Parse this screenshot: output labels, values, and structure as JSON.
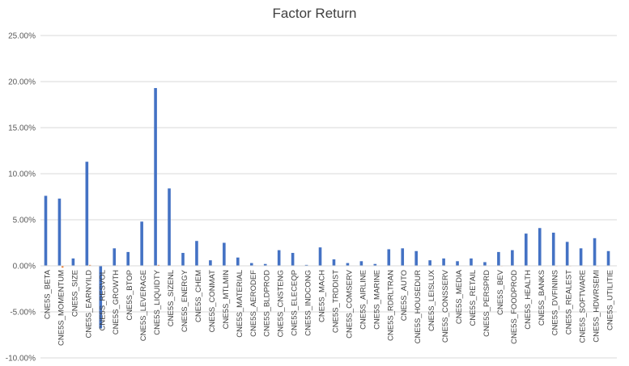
{
  "chart_data": {
    "type": "bar",
    "title": "Factor Return",
    "xlabel": "",
    "ylabel": "",
    "ylim": [
      -0.1,
      0.25
    ],
    "yticks": [
      -0.1,
      -0.05,
      0.0,
      0.05,
      0.1,
      0.15,
      0.2,
      0.25
    ],
    "ytick_labels": [
      "-10.00%",
      "-5.00%",
      "0.00%",
      "5.00%",
      "10.00%",
      "15.00%",
      "20.00%",
      "25.00%"
    ],
    "grid": true,
    "legend": "none",
    "categories": [
      "CNE5S_BETA",
      "CNE5S_MOMENTUM",
      "CNE5S_SIZE",
      "CNE5S_EARNYILD",
      "CNE5S_RESVOL",
      "CNE5S_GROWTH",
      "CNE5S_BTOP",
      "CNE5S_LEVERAGE",
      "CNE5S_LIQUIDTY",
      "CNE5S_SIZENL",
      "CNE5S_ENERGY",
      "CNE5S_CHEM",
      "CNE5S_CONMAT",
      "CNE5S_MTLMIN",
      "CNE5S_MATERIAL",
      "CNE5S_AERODEF",
      "CNE5S_BLDPROD",
      "CNE5S_CNSTENG",
      "CNE5S_ELECEQP",
      "CNE5S_INDCONG",
      "CNE5S_MACH",
      "CNE5S_TRDDIST",
      "CNE5S_COMSERV",
      "CNE5S_AIRLINE",
      "CNE5S_MARINE",
      "CNE5S_RDRLTRAN",
      "CNE5S_AUTO",
      "CNE5S_HOUSEDUR",
      "CNE5S_LEISLUX",
      "CNE5S_CONSSERV",
      "CNE5S_MEDIA",
      "CNE5S_RETAIL",
      "CNE5S_PERSPRD",
      "CNE5S_BEV",
      "CNE5S_FOODPROD",
      "CNE5S_HEALTH",
      "CNE5S_BANKS",
      "CNE5S_DVFININS",
      "CNE5S_REALEST",
      "CNE5S_SOFTWARE",
      "CNE5S_HDWRSEMI",
      "CNE5S_UTILITIE"
    ],
    "series": [
      {
        "color": "#4472c4",
        "values": [
          0.076,
          0.073,
          0.008,
          0.113,
          -0.068,
          0.019,
          0.015,
          0.048,
          0.193,
          0.084,
          0.014,
          0.027,
          0.006,
          0.025,
          0.009,
          0.003,
          0.002,
          0.017,
          0.014,
          0.001,
          0.02,
          0.007,
          0.003,
          0.005,
          0.002,
          0.018,
          0.019,
          0.016,
          0.006,
          0.008,
          0.005,
          0.008,
          0.004,
          0.015,
          0.017,
          0.035,
          0.041,
          0.036,
          0.026,
          0.019,
          0.03,
          0.016
        ]
      },
      {
        "color": "#ed7d31",
        "values": [
          0.0005,
          -0.002,
          0.0004,
          0.001,
          0.0005,
          0.0005,
          0.0003,
          0.0003,
          0.001,
          0.0004,
          0.0003,
          0.0004,
          0.0003,
          0.0005,
          0.0003,
          0.0005,
          0.0003,
          0.0004,
          0.0004,
          0.0003,
          0.0004,
          0.0003,
          0.0003,
          0.0004,
          0.0003,
          0.0004,
          0.0003,
          0.0003,
          0.0004,
          0.0003,
          0.0004,
          0.0003,
          0.0003,
          -0.0005,
          0.0003,
          0.0005,
          0.0003,
          -0.0005,
          -0.0005,
          0.0005,
          -0.0005,
          0.0003
        ]
      }
    ]
  }
}
